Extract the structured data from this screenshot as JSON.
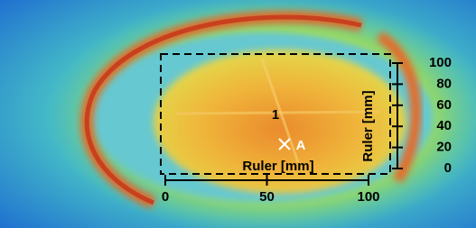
{
  "markers": [
    {
      "label": "1"
    },
    {
      "label": "A"
    }
  ],
  "rulers": {
    "x": {
      "label": "Ruler [mm]",
      "ticks": [
        0,
        50,
        100
      ]
    },
    "y": {
      "label": "Ruler [mm]",
      "ticks": [
        0,
        20,
        40,
        60,
        80,
        100
      ]
    }
  }
}
